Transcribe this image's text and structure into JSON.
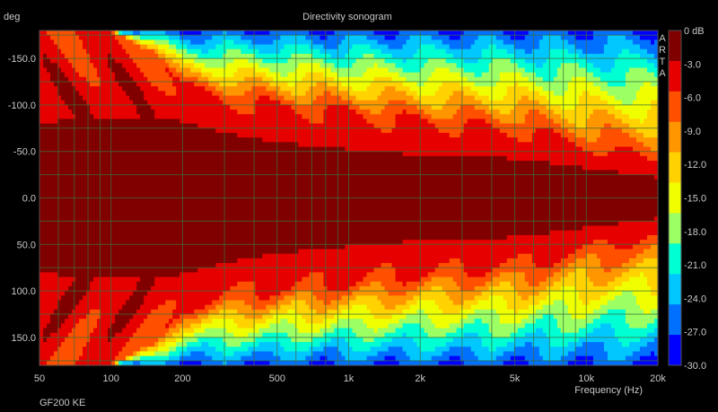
{
  "chart_data": {
    "type": "heatmap",
    "title": "Directivity sonogram",
    "ylabel": "deg",
    "xlabel": "Frequency (Hz)",
    "x_scale": "log",
    "xlim": [
      50,
      20000
    ],
    "ylim": [
      -180,
      180
    ],
    "x_ticks": [
      {
        "value": 50,
        "label": "50"
      },
      {
        "value": 100,
        "label": "100"
      },
      {
        "value": 200,
        "label": "200"
      },
      {
        "value": 500,
        "label": "500"
      },
      {
        "value": 1000,
        "label": "1k"
      },
      {
        "value": 2000,
        "label": "2k"
      },
      {
        "value": 5000,
        "label": "5k"
      },
      {
        "value": 10000,
        "label": "10k"
      },
      {
        "value": 20000,
        "label": "20k"
      }
    ],
    "y_ticks": [
      {
        "value": -150,
        "label": "-150.0"
      },
      {
        "value": -100,
        "label": "-100.0"
      },
      {
        "value": -50,
        "label": "-50.0"
      },
      {
        "value": 0,
        "label": "0.0"
      },
      {
        "value": 50,
        "label": "50.0"
      },
      {
        "value": 100,
        "label": "100.0"
      },
      {
        "value": 150,
        "label": "150.0"
      }
    ],
    "colorbar": {
      "labels": [
        "0 dB",
        "-3.0",
        "-6.0",
        "-9.0",
        "-12.0",
        "-15.0",
        "-18.0",
        "-21.0",
        "-24.0",
        "-27.0",
        "-30.0"
      ],
      "colors": [
        "#800000",
        "#e60000",
        "#ff5000",
        "#ff9600",
        "#ffd200",
        "#f0ff00",
        "#9cff64",
        "#00ffd2",
        "#00c8ff",
        "#0070ff",
        "#0000ff"
      ],
      "side_text": [
        "A",
        "R",
        "T",
        "A"
      ]
    },
    "beamwidth_deg_at_freq": [
      {
        "hz": 50,
        "minus6": 180,
        "minus3": 82
      },
      {
        "hz": 100,
        "minus6": 180,
        "minus3": 84
      },
      {
        "hz": 150,
        "minus6": 155,
        "minus3": 86
      },
      {
        "hz": 200,
        "minus6": 120,
        "minus3": 82
      },
      {
        "hz": 300,
        "minus6": 108,
        "minus3": 70
      },
      {
        "hz": 500,
        "minus6": 100,
        "minus3": 60
      },
      {
        "hz": 1000,
        "minus6": 92,
        "minus3": 52
      },
      {
        "hz": 2000,
        "minus6": 82,
        "minus3": 46
      },
      {
        "hz": 4000,
        "minus6": 76,
        "minus3": 44
      },
      {
        "hz": 6000,
        "minus6": 70,
        "minus3": 40
      },
      {
        "hz": 10000,
        "minus6": 55,
        "minus3": 32
      },
      {
        "hz": 20000,
        "minus6": 40,
        "minus3": 22
      }
    ],
    "grid": true,
    "legend": "right"
  },
  "footer": {
    "label": "GF200 KE"
  }
}
